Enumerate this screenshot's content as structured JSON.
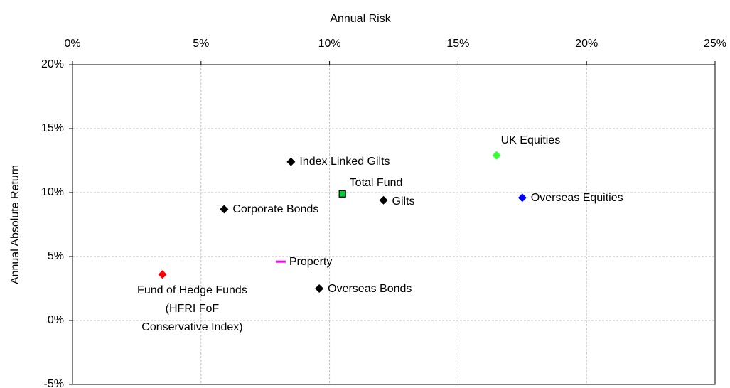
{
  "chart_data": {
    "type": "scatter",
    "xlabel": "Annual Risk",
    "ylabel": "Annual Absolute Return",
    "xlim": [
      0,
      25
    ],
    "ylim": [
      -5,
      20
    ],
    "xticks": [
      {
        "value": 0,
        "label": "0%"
      },
      {
        "value": 5,
        "label": "5%"
      },
      {
        "value": 10,
        "label": "10%"
      },
      {
        "value": 15,
        "label": "15%"
      },
      {
        "value": 20,
        "label": "20%"
      },
      {
        "value": 25,
        "label": "25%"
      }
    ],
    "yticks": [
      {
        "value": -5,
        "label": "-5%"
      },
      {
        "value": 0,
        "label": "0%"
      },
      {
        "value": 5,
        "label": "5%"
      },
      {
        "value": 10,
        "label": "10%"
      },
      {
        "value": 15,
        "label": "15%"
      },
      {
        "value": 20,
        "label": "20%"
      }
    ],
    "grid": true,
    "series": [
      {
        "name": "Index Linked Gilts",
        "color": "#000000",
        "marker": "diamond",
        "x": [
          8.5
        ],
        "values": [
          12.4
        ]
      },
      {
        "name": "Total Fund",
        "color": "#00cc33",
        "marker": "square",
        "x": [
          10.5
        ],
        "values": [
          9.9
        ]
      },
      {
        "name": "Gilts",
        "color": "#000000",
        "marker": "diamond",
        "x": [
          12.1
        ],
        "values": [
          9.4
        ]
      },
      {
        "name": "Corporate Bonds",
        "color": "#000000",
        "marker": "diamond",
        "x": [
          5.9
        ],
        "values": [
          8.7
        ]
      },
      {
        "name": "UK Equities",
        "color": "#33ff33",
        "marker": "diamond",
        "x": [
          16.5
        ],
        "values": [
          12.9
        ]
      },
      {
        "name": "Overseas Equities",
        "color": "#0000ff",
        "marker": "diamond",
        "x": [
          17.5
        ],
        "values": [
          9.6
        ]
      },
      {
        "name": "Property",
        "color": "#ff00ff",
        "marker": "dash",
        "x": [
          8.1
        ],
        "values": [
          4.6
        ]
      },
      {
        "name": "Fund of Hedge Funds\n(HFRI FoF\nConservative Index)",
        "color": "#ff0000",
        "marker": "diamond",
        "x": [
          3.5
        ],
        "values": [
          3.6
        ]
      },
      {
        "name": "Overseas Bonds",
        "color": "#000000",
        "marker": "diamond",
        "x": [
          9.6
        ],
        "values": [
          2.5
        ]
      }
    ]
  }
}
